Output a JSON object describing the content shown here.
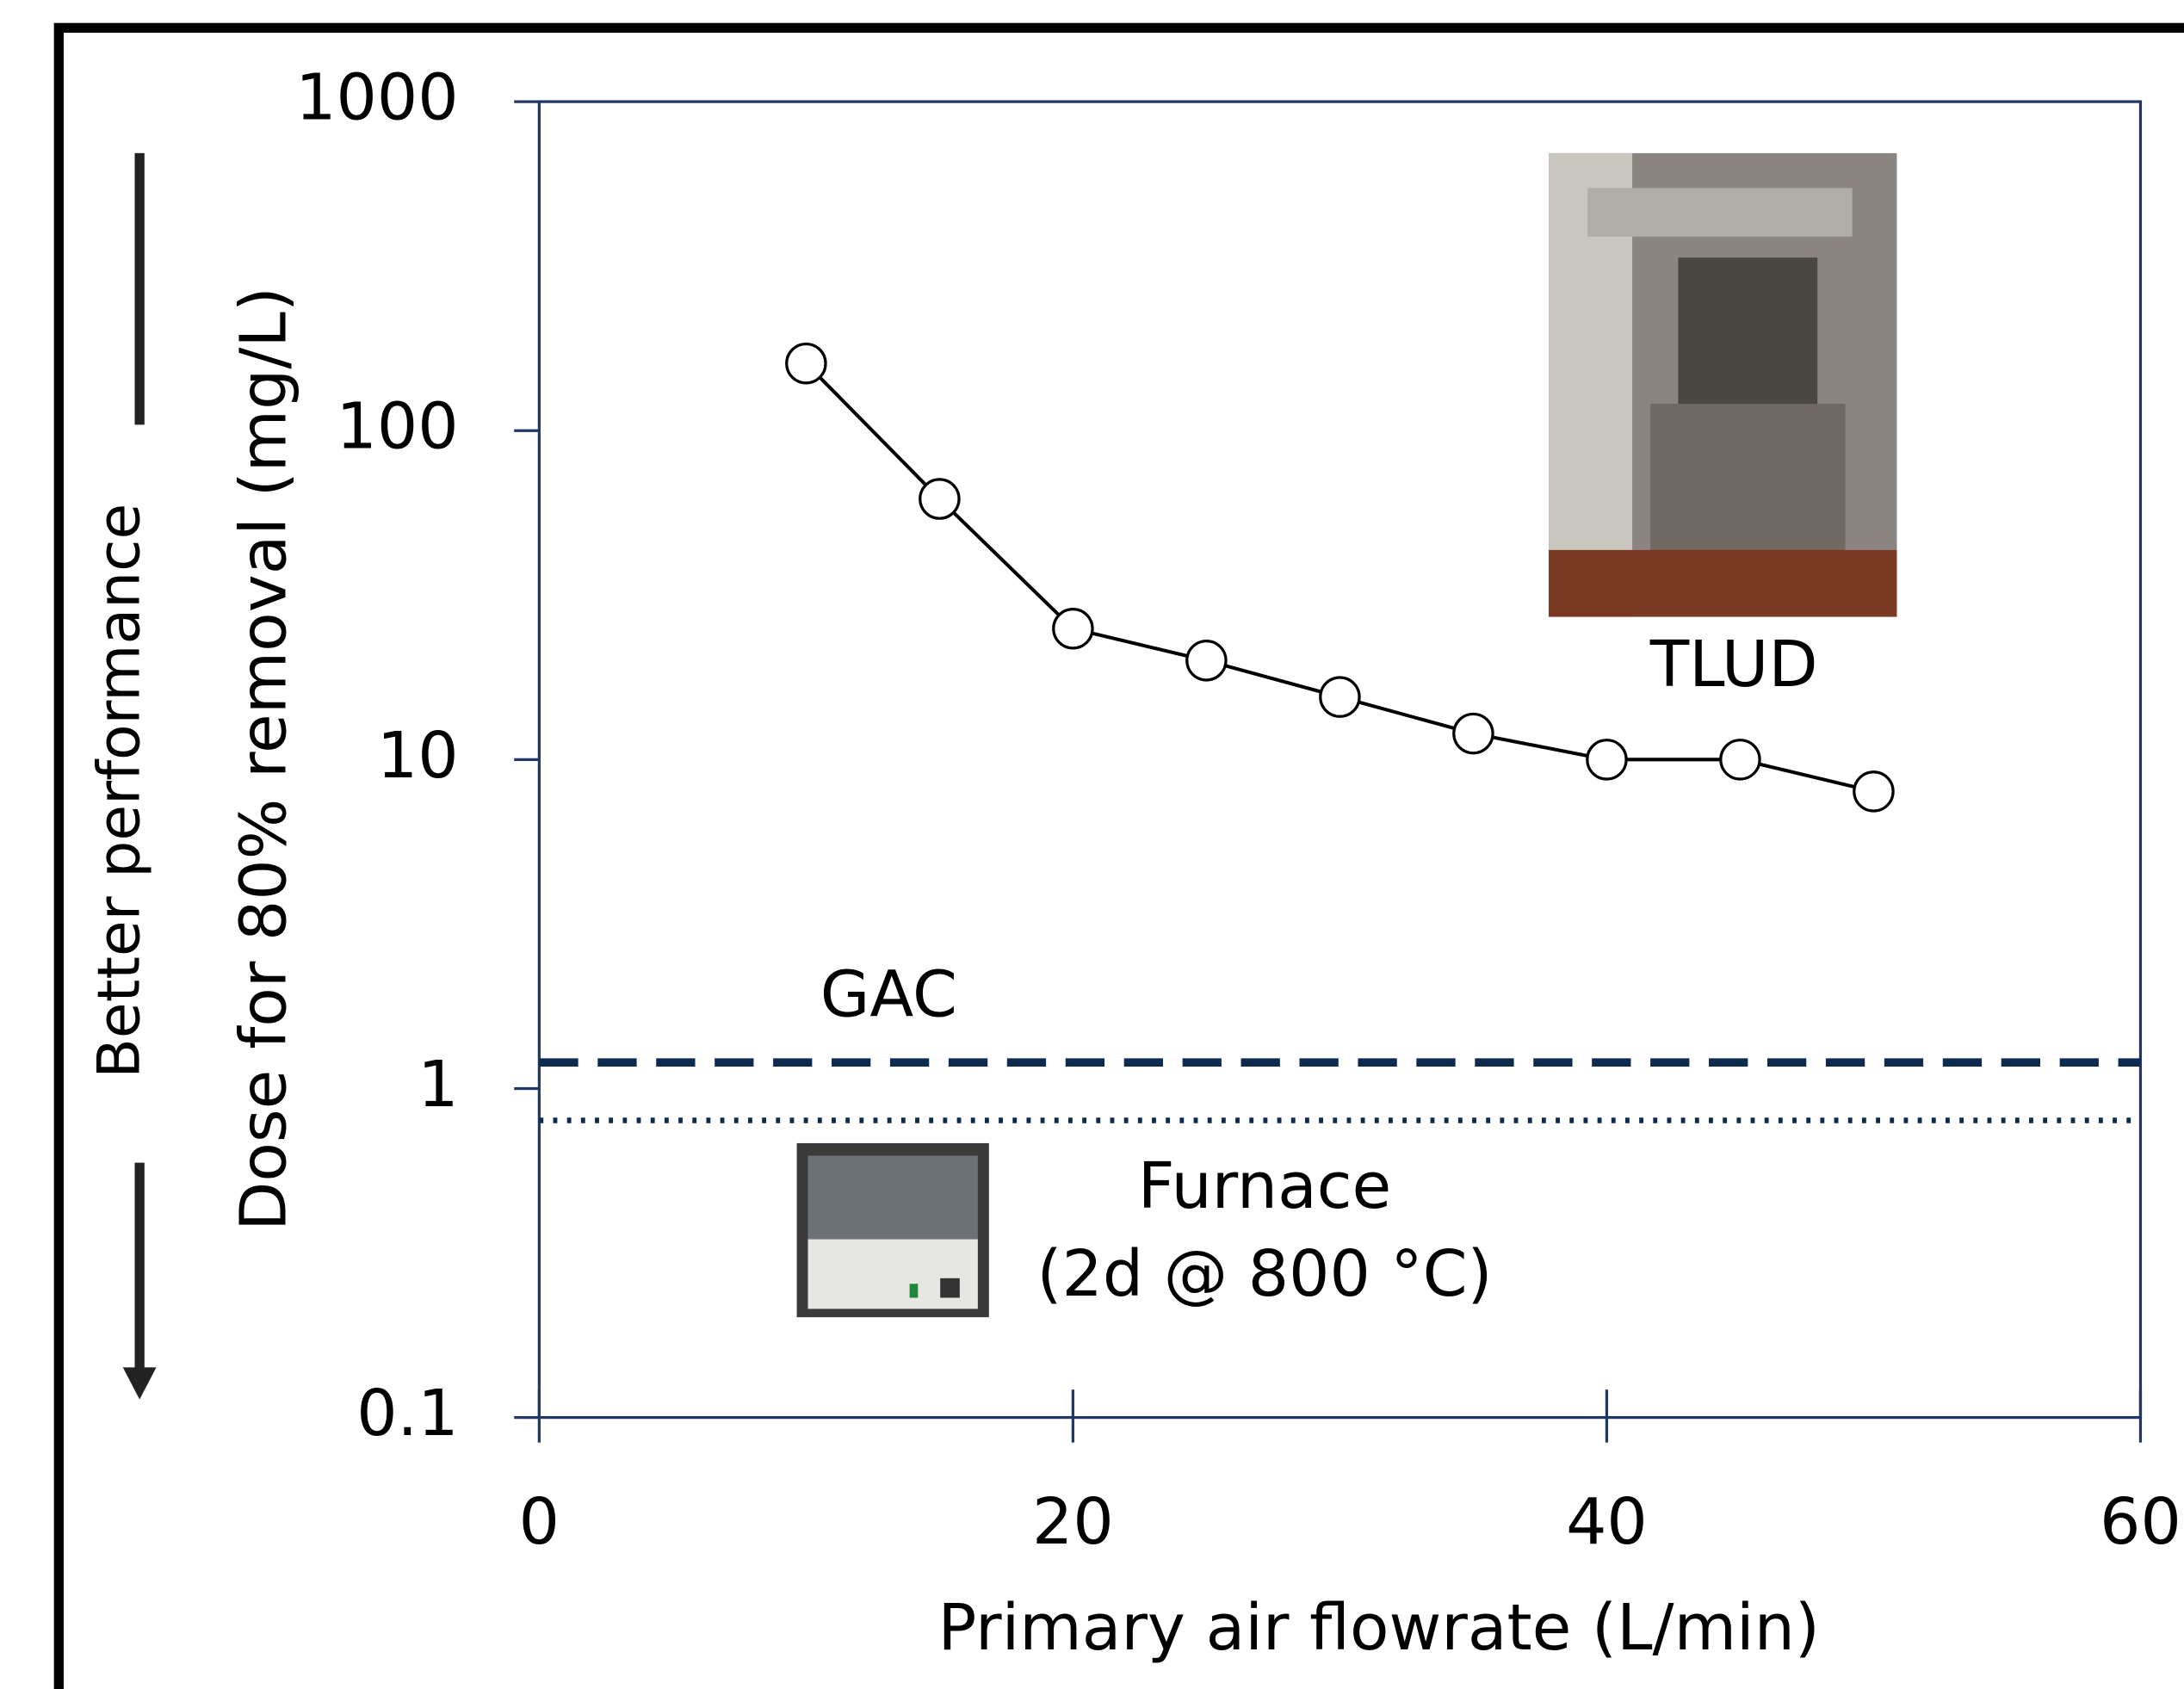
{
  "chart_data": {
    "type": "line",
    "x_label": "Primary air flowrate (L/min)",
    "y_label": "Dose for 80% removal (mg/L)",
    "side_note": "Better performance",
    "x": [
      10,
      15,
      20,
      25,
      30,
      35,
      40,
      45,
      50
    ],
    "series": [
      {
        "name": "TLUD",
        "color": "#000000",
        "values": [
          160,
          62,
          25,
          20,
          15.5,
          12,
          10,
          10,
          8
        ]
      }
    ],
    "reference_lines": [
      {
        "label": "GAC",
        "value": 1.2,
        "style": "dashed",
        "color": "#0d2a4f"
      },
      {
        "label": "Furnace",
        "note": "(2d @ 800 °C)",
        "value": 0.8,
        "style": "dotted",
        "color": "#0d2a4f"
      }
    ],
    "xlim": [
      0,
      60
    ],
    "xticks": [
      0,
      20,
      40,
      60
    ],
    "ylim": [
      0.1,
      1000
    ],
    "yticks": [
      0.1,
      1,
      10,
      100,
      1000
    ],
    "y_scale": "log",
    "grid": false
  }
}
